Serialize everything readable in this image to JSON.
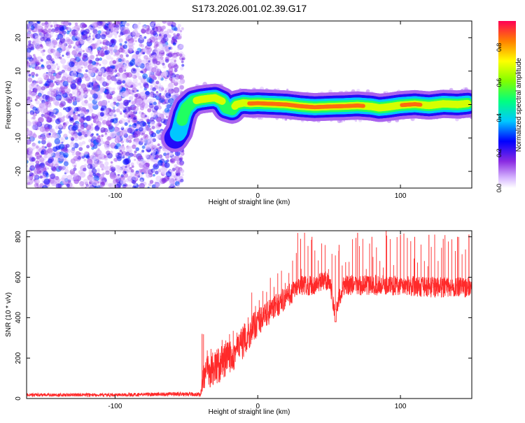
{
  "title": "S173.2026.001.02.39.G17",
  "chart_data": [
    {
      "type": "heatmap",
      "xlabel": "Height of straight line (km)",
      "ylabel": "Frequency (Hz)",
      "xlim": [
        -162,
        150
      ],
      "ylim": [
        -25,
        25
      ],
      "xticks": [
        -100,
        0,
        100
      ],
      "yticks": [
        -20,
        -10,
        0,
        10,
        20
      ],
      "colorbar": {
        "label": "Normalized spectral amplitude",
        "range": [
          0.0,
          0.95
        ],
        "ticks": [
          0.0,
          0.2,
          0.4,
          0.6,
          0.8
        ]
      },
      "noise_region_x": [
        -162,
        -52
      ],
      "ridge": {
        "description": "dominant frequency ridge",
        "x": [
          -58,
          -55,
          -52,
          -50,
          -45,
          -40,
          -35,
          -30,
          -25,
          -22,
          -18,
          -15,
          -10,
          -5,
          0,
          10,
          20,
          30,
          40,
          50,
          60,
          70,
          80,
          85,
          90,
          100,
          110,
          120,
          130,
          140,
          147
        ],
        "freq": [
          -10,
          -8,
          -3,
          -1,
          1,
          1.5,
          1.8,
          2,
          1,
          -1,
          -1.5,
          0,
          0.5,
          0.3,
          0.4,
          0.2,
          0,
          -0.5,
          -0.8,
          -0.6,
          -0.5,
          -0.3,
          -0.6,
          -1,
          -0.8,
          -0.2,
          0.1,
          -0.3,
          0.2,
          0,
          0.3
        ],
        "amplitude": [
          0.35,
          0.45,
          0.6,
          0.65,
          0.7,
          0.72,
          0.75,
          0.78,
          0.7,
          0.6,
          0.65,
          0.8,
          0.85,
          0.9,
          0.92,
          0.93,
          0.9,
          0.95,
          0.92,
          0.9,
          0.88,
          0.9,
          0.85,
          0.8,
          0.85,
          0.88,
          0.9,
          0.85,
          0.88,
          0.86,
          0.85
        ]
      }
    },
    {
      "type": "line",
      "xlabel": "Height of straight line (km)",
      "ylabel": "SNR (10 * v/v)",
      "xlim": [
        -162,
        150
      ],
      "ylim": [
        0,
        830
      ],
      "xticks": [
        -100,
        0,
        100
      ],
      "yticks": [
        0,
        200,
        400,
        600,
        800
      ],
      "color": "#ff2a2a",
      "envelope_x": [
        -162,
        -100,
        -60,
        -40,
        -38,
        -30,
        -20,
        -10,
        0,
        10,
        20,
        30,
        40,
        50,
        54,
        60,
        80,
        100,
        120,
        150
      ],
      "envelope_mean": [
        18,
        18,
        22,
        20,
        120,
        150,
        200,
        280,
        380,
        440,
        500,
        560,
        560,
        590,
        430,
        560,
        560,
        560,
        550,
        550
      ],
      "envelope_spread": [
        8,
        8,
        10,
        10,
        80,
        90,
        90,
        80,
        70,
        60,
        60,
        50,
        50,
        50,
        40,
        50,
        50,
        50,
        50,
        50
      ],
      "spikes_x": [
        -39,
        30,
        38,
        57,
        70,
        80,
        90,
        100,
        110,
        120,
        130,
        140,
        148
      ],
      "spikes_y": [
        320,
        790,
        800,
        760,
        820,
        800,
        830,
        810,
        800,
        810,
        790,
        800,
        810
      ]
    }
  ]
}
